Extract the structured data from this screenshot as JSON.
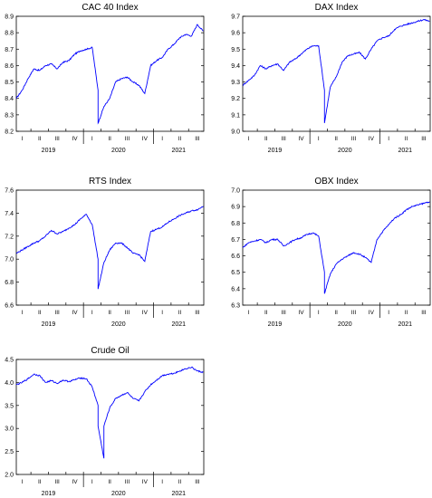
{
  "chart_data": [
    {
      "type": "line",
      "title": "CAC 40 Index",
      "xlabel": "",
      "ylabel": "",
      "ylim": [
        8.2,
        8.9
      ],
      "yticks": [
        "8.2",
        "8.3",
        "8.4",
        "8.5",
        "8.6",
        "8.7",
        "8.8",
        "8.9"
      ],
      "color": "#0000ff",
      "grid": false,
      "x_quarters": [
        "I",
        "II",
        "III",
        "IV",
        "I",
        "II",
        "III",
        "IV",
        "I",
        "II",
        "III"
      ],
      "x_years": [
        "2019",
        "2020",
        "2021"
      ],
      "series": [
        {
          "x": [
            "2019-01",
            "2019-02",
            "2019-03",
            "2019-04",
            "2019-05",
            "2019-06",
            "2019-07",
            "2019-08",
            "2019-09",
            "2019-10",
            "2019-11",
            "2019-12",
            "2020-01",
            "2020-02",
            "2020-03",
            "2020-03",
            "2020-04",
            "2020-05",
            "2020-06",
            "2020-07",
            "2020-08",
            "2020-09",
            "2020-10",
            "2020-11",
            "2020-12",
            "2021-01",
            "2021-02",
            "2021-03",
            "2021-04",
            "2021-05",
            "2021-06",
            "2021-07",
            "2021-08",
            "2021-09"
          ],
          "values": [
            8.4,
            8.45,
            8.52,
            8.58,
            8.57,
            8.6,
            8.61,
            8.58,
            8.62,
            8.63,
            8.67,
            8.69,
            8.7,
            8.71,
            8.45,
            8.25,
            8.35,
            8.4,
            8.5,
            8.52,
            8.53,
            8.5,
            8.48,
            8.43,
            8.6,
            8.63,
            8.65,
            8.7,
            8.73,
            8.77,
            8.79,
            8.78,
            8.85,
            8.81
          ]
        }
      ]
    },
    {
      "type": "line",
      "title": "DAX Index",
      "xlabel": "",
      "ylabel": "",
      "ylim": [
        9.0,
        9.7
      ],
      "yticks": [
        "9.0",
        "9.1",
        "9.2",
        "9.3",
        "9.4",
        "9.5",
        "9.6",
        "9.7"
      ],
      "color": "#0000ff",
      "grid": false,
      "x_quarters": [
        "I",
        "II",
        "III",
        "IV",
        "I",
        "II",
        "III",
        "IV",
        "I",
        "II",
        "III"
      ],
      "x_years": [
        "2019",
        "2020",
        "2021"
      ],
      "series": [
        {
          "x": [
            "2019-01",
            "2019-02",
            "2019-03",
            "2019-04",
            "2019-05",
            "2019-06",
            "2019-07",
            "2019-08",
            "2019-09",
            "2019-10",
            "2019-11",
            "2019-12",
            "2020-01",
            "2020-02",
            "2020-03",
            "2020-03",
            "2020-04",
            "2020-05",
            "2020-06",
            "2020-07",
            "2020-08",
            "2020-09",
            "2020-10",
            "2020-11",
            "2020-12",
            "2021-01",
            "2021-02",
            "2021-03",
            "2021-04",
            "2021-05",
            "2021-06",
            "2021-07",
            "2021-08",
            "2021-09"
          ],
          "values": [
            9.28,
            9.31,
            9.34,
            9.4,
            9.38,
            9.4,
            9.41,
            9.37,
            9.42,
            9.44,
            9.47,
            9.5,
            9.52,
            9.52,
            9.25,
            9.05,
            9.27,
            9.33,
            9.42,
            9.46,
            9.47,
            9.48,
            9.44,
            9.5,
            9.55,
            9.57,
            9.58,
            9.62,
            9.64,
            9.65,
            9.66,
            9.67,
            9.68,
            9.67
          ]
        }
      ]
    },
    {
      "type": "line",
      "title": "RTS Index",
      "xlabel": "",
      "ylabel": "",
      "ylim": [
        6.6,
        7.6
      ],
      "yticks": [
        "6.6",
        "6.8",
        "7.0",
        "7.2",
        "7.4",
        "7.6"
      ],
      "color": "#0000ff",
      "grid": false,
      "x_quarters": [
        "I",
        "II",
        "III",
        "IV",
        "I",
        "II",
        "III",
        "IV",
        "I",
        "II",
        "III"
      ],
      "x_years": [
        "2019",
        "2020",
        "2021"
      ],
      "series": [
        {
          "x": [
            "2019-01",
            "2019-02",
            "2019-03",
            "2019-04",
            "2019-05",
            "2019-06",
            "2019-07",
            "2019-08",
            "2019-09",
            "2019-10",
            "2019-11",
            "2019-12",
            "2020-01",
            "2020-02",
            "2020-03",
            "2020-03",
            "2020-04",
            "2020-05",
            "2020-06",
            "2020-07",
            "2020-08",
            "2020-09",
            "2020-10",
            "2020-11",
            "2020-12",
            "2021-01",
            "2021-02",
            "2021-03",
            "2021-04",
            "2021-05",
            "2021-06",
            "2021-07",
            "2021-08",
            "2021-09"
          ],
          "values": [
            7.05,
            7.08,
            7.11,
            7.14,
            7.16,
            7.2,
            7.25,
            7.22,
            7.24,
            7.27,
            7.3,
            7.35,
            7.39,
            7.3,
            7.0,
            6.74,
            6.97,
            7.08,
            7.14,
            7.14,
            7.1,
            7.05,
            7.04,
            6.98,
            7.24,
            7.26,
            7.28,
            7.32,
            7.35,
            7.38,
            7.4,
            7.42,
            7.43,
            7.46
          ]
        }
      ]
    },
    {
      "type": "line",
      "title": "OBX Index",
      "xlabel": "",
      "ylabel": "",
      "ylim": [
        6.3,
        7.0
      ],
      "yticks": [
        "6.3",
        "6.4",
        "6.5",
        "6.6",
        "6.7",
        "6.8",
        "6.9",
        "7.0"
      ],
      "color": "#0000ff",
      "grid": false,
      "x_quarters": [
        "I",
        "II",
        "III",
        "IV",
        "I",
        "II",
        "III",
        "IV",
        "I",
        "II",
        "III"
      ],
      "x_years": [
        "2019",
        "2020",
        "2021"
      ],
      "series": [
        {
          "x": [
            "2019-01",
            "2019-02",
            "2019-03",
            "2019-04",
            "2019-05",
            "2019-06",
            "2019-07",
            "2019-08",
            "2019-09",
            "2019-10",
            "2019-11",
            "2019-12",
            "2020-01",
            "2020-02",
            "2020-03",
            "2020-03",
            "2020-04",
            "2020-05",
            "2020-06",
            "2020-07",
            "2020-08",
            "2020-09",
            "2020-10",
            "2020-11",
            "2020-12",
            "2021-01",
            "2021-02",
            "2021-03",
            "2021-04",
            "2021-05",
            "2021-06",
            "2021-07",
            "2021-08",
            "2021-09"
          ],
          "values": [
            6.65,
            6.68,
            6.69,
            6.7,
            6.68,
            6.7,
            6.7,
            6.66,
            6.68,
            6.7,
            6.71,
            6.73,
            6.74,
            6.72,
            6.5,
            6.37,
            6.49,
            6.55,
            6.58,
            6.6,
            6.62,
            6.61,
            6.59,
            6.56,
            6.7,
            6.75,
            6.79,
            6.83,
            6.85,
            6.88,
            6.9,
            6.91,
            6.92,
            6.93
          ]
        }
      ]
    },
    {
      "type": "line",
      "title": "Crude Oil",
      "xlabel": "",
      "ylabel": "",
      "ylim": [
        2.0,
        4.5
      ],
      "yticks": [
        "2.0",
        "2.5",
        "3.0",
        "3.5",
        "4.0",
        "4.5"
      ],
      "color": "#0000ff",
      "grid": false,
      "x_quarters": [
        "I",
        "II",
        "III",
        "IV",
        "I",
        "II",
        "III",
        "IV",
        "I",
        "II",
        "III"
      ],
      "x_years": [
        "2019",
        "2020",
        "2021"
      ],
      "series": [
        {
          "x": [
            "2019-01",
            "2019-02",
            "2019-03",
            "2019-04",
            "2019-05",
            "2019-06",
            "2019-07",
            "2019-08",
            "2019-09",
            "2019-10",
            "2019-11",
            "2019-12",
            "2020-01",
            "2020-02",
            "2020-03",
            "2020-03",
            "2020-04",
            "2020-04",
            "2020-05",
            "2020-06",
            "2020-07",
            "2020-08",
            "2020-09",
            "2020-10",
            "2020-11",
            "2020-12",
            "2021-01",
            "2021-02",
            "2021-03",
            "2021-04",
            "2021-05",
            "2021-06",
            "2021-07",
            "2021-08",
            "2021-09"
          ],
          "values": [
            3.95,
            4.0,
            4.08,
            4.18,
            4.15,
            4.0,
            4.04,
            3.98,
            4.05,
            4.02,
            4.06,
            4.1,
            4.08,
            3.9,
            3.5,
            3.05,
            2.35,
            3.05,
            3.45,
            3.65,
            3.72,
            3.78,
            3.65,
            3.6,
            3.8,
            3.95,
            4.05,
            4.15,
            4.18,
            4.2,
            4.25,
            4.3,
            4.33,
            4.25,
            4.22
          ]
        }
      ]
    }
  ]
}
